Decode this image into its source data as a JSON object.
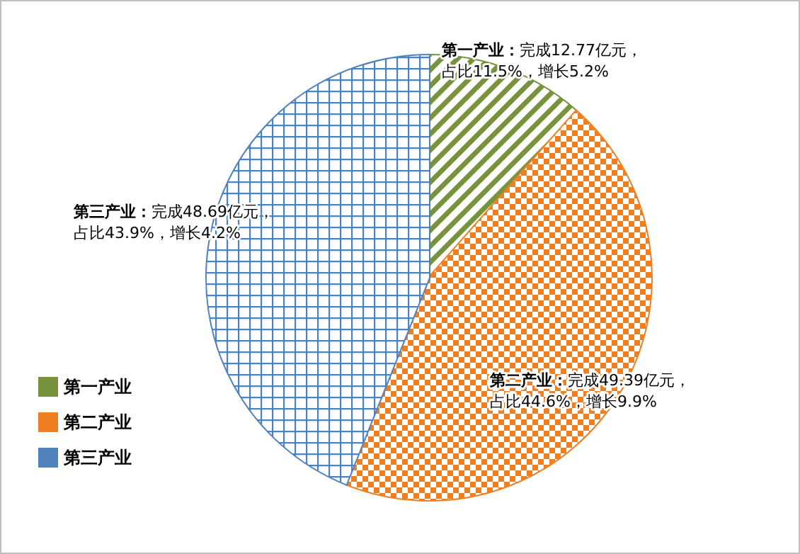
{
  "chart_data": {
    "type": "pie",
    "categories": [
      "第一产业",
      "第二产业",
      "第三产业"
    ],
    "values": [
      12.77,
      49.39,
      48.69
    ],
    "colors": [
      "#77933c",
      "#f07f22",
      "#4f81bd"
    ],
    "value_labels": [
      "第一产业：完成12.77亿元，占比11.5%，增长5.2%",
      "第二产业：完成49.39亿元，占比44.6%，增长9.9%",
      "第三产业：完成48.69亿元，占比43.9%，增长4.2%"
    ],
    "legend": "left"
  }
}
